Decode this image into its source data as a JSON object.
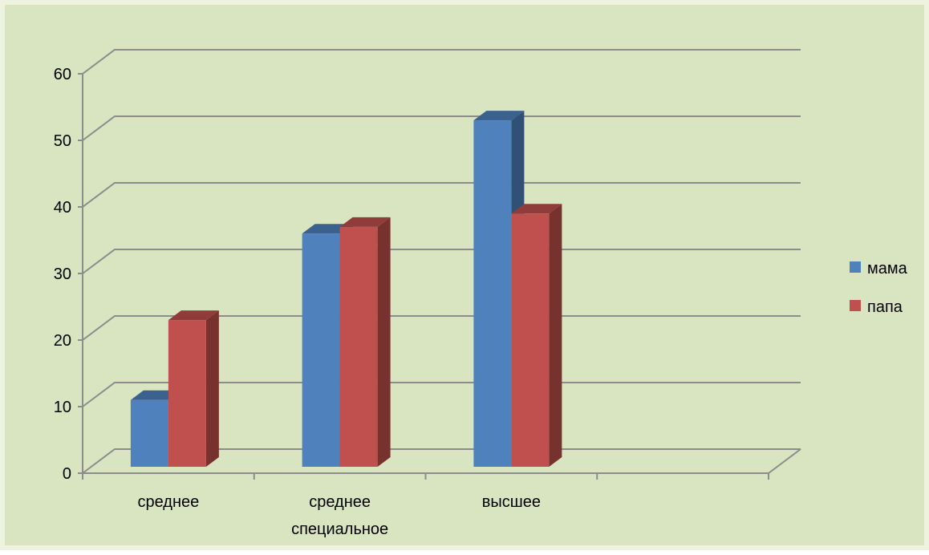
{
  "chart_data": {
    "type": "bar",
    "categories": [
      [
        "среднее"
      ],
      [
        "среднее",
        "специальное"
      ],
      [
        "высшее"
      ],
      [
        ""
      ]
    ],
    "series": [
      {
        "name": "мама",
        "values": [
          11,
          36,
          53,
          null
        ],
        "color": "#4f81bd"
      },
      {
        "name": "папа",
        "values": [
          23,
          37,
          39,
          null
        ],
        "color": "#c0504d"
      }
    ],
    "ylim": [
      0,
      60
    ],
    "yticks": [
      0,
      10,
      20,
      30,
      40,
      50,
      60
    ],
    "grid": true,
    "legend_position": "right",
    "style": "3d-clustered-column"
  },
  "colors": {
    "background": "#d9e4c0",
    "gridline": "#8c8c8c"
  }
}
